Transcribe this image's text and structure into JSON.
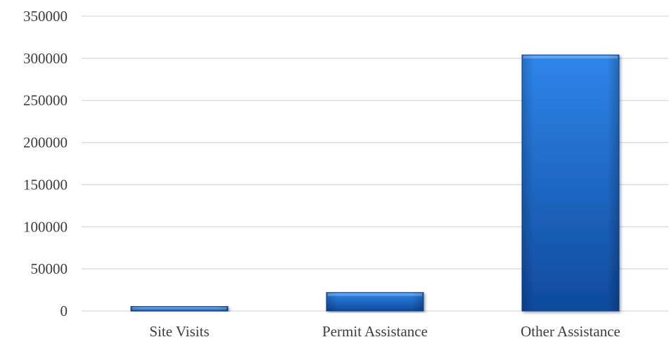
{
  "chart_data": {
    "type": "bar",
    "title": "",
    "xlabel": "",
    "ylabel": "",
    "categories": [
      "Site Visits",
      "Permit Assistance",
      "Other Assistance"
    ],
    "values": [
      5500,
      22000,
      304000
    ],
    "ylim": [
      0,
      350000
    ],
    "yticks": [
      "0",
      "50000",
      "100000",
      "150000",
      "200000",
      "250000",
      "300000",
      "350000"
    ],
    "grid": true,
    "legend": "none",
    "colors": {
      "bar_light": "#2f86ea",
      "bar_mid": "#1c6ad0",
      "bar_dark": "#0f4a9c",
      "gridline": "#d9d9d9",
      "text": "#3c3c3c"
    }
  }
}
